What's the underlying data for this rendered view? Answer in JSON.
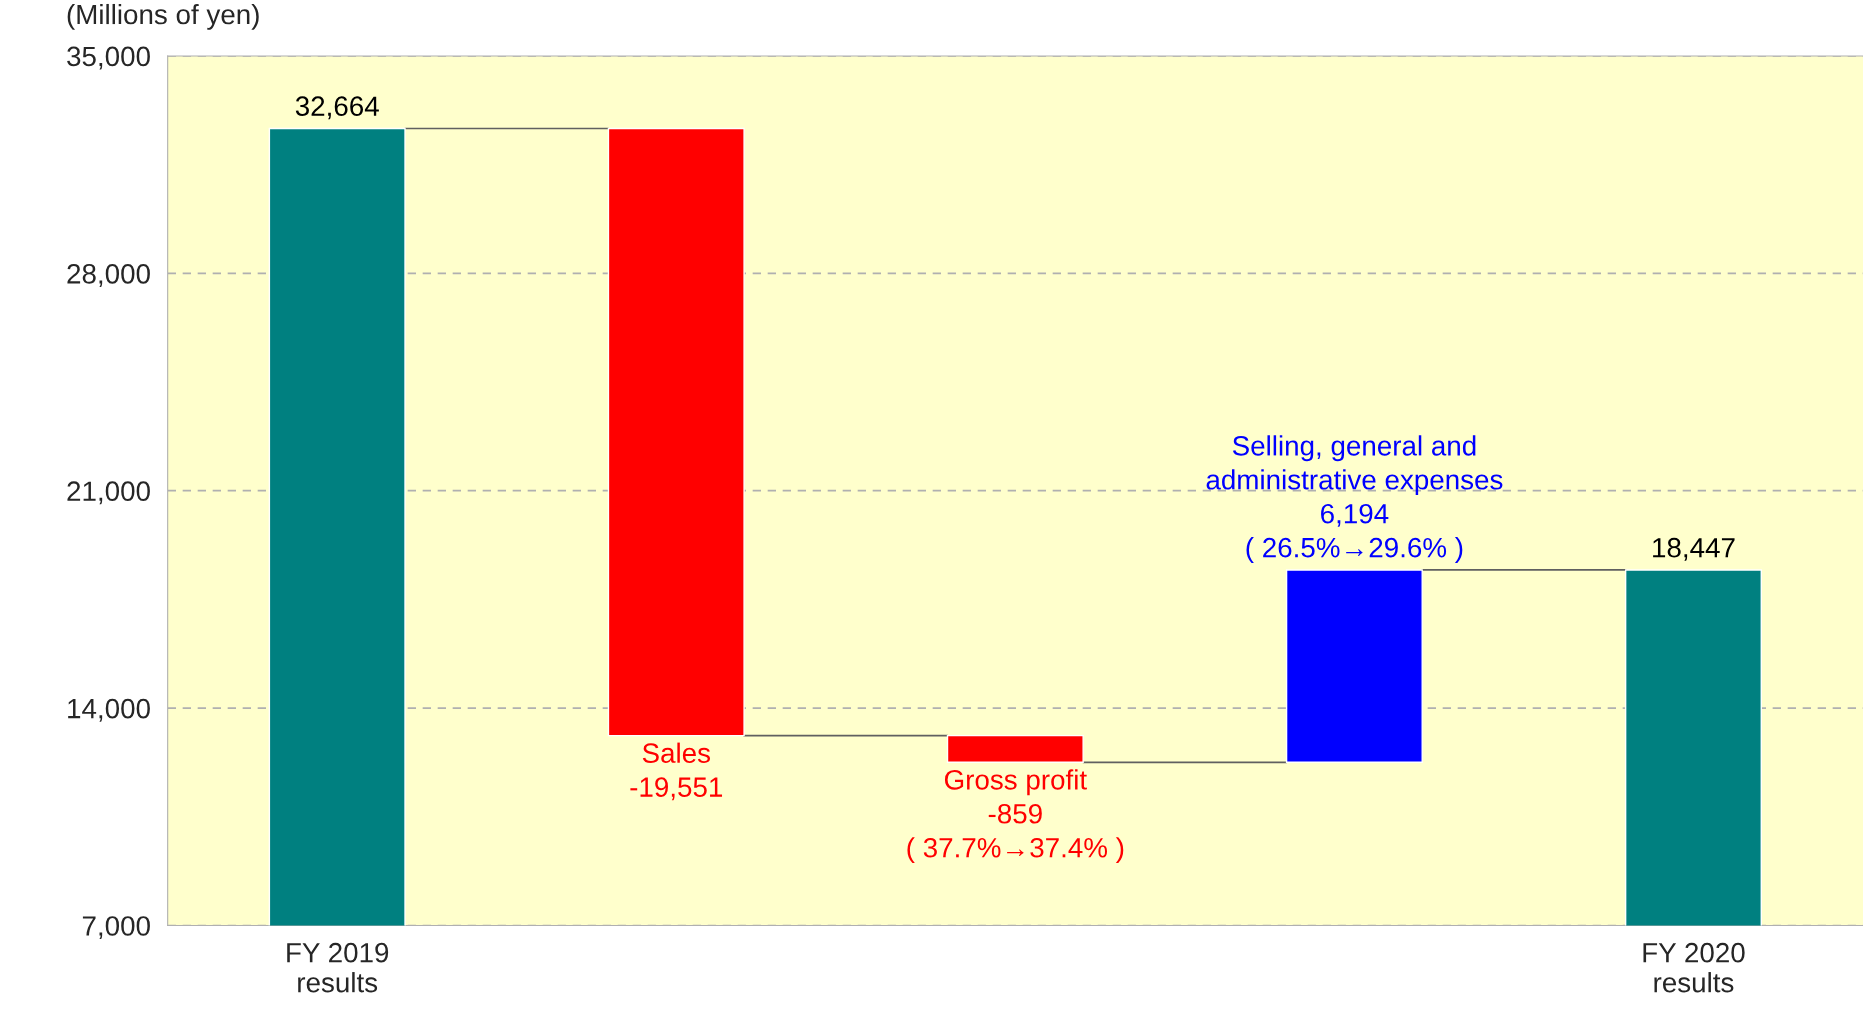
{
  "chart_data": {
    "type": "bar",
    "ylabel": "(Millions of yen)",
    "categories": [
      "FY 2019\nresults",
      null,
      null,
      null,
      "FY 2020\nresults"
    ],
    "values": [
      32664,
      -19551,
      -859,
      6194,
      18447
    ],
    "base": [
      0,
      32664,
      13113,
      12254,
      0
    ],
    "colors": [
      "#008080",
      "#ff0000",
      "#ff0000",
      "#0000ff",
      "#008080"
    ],
    "value_labels": [
      "32,664",
      "Sales\n-19,551",
      "Gross profit\n-859\n( 37.7%→37.4% )",
      "Selling, general and\nadministrative expenses\n6,194\n( 26.5%→29.6% )",
      "18,447"
    ],
    "ylim": [
      7000,
      35000
    ],
    "yticks": [
      {
        "value": 7000,
        "label": "7,000"
      },
      {
        "value": 14000,
        "label": "14,000"
      },
      {
        "value": 21000,
        "label": "21,000"
      },
      {
        "value": 28000,
        "label": "28,000"
      },
      {
        "value": 35000,
        "label": "35,000"
      }
    ],
    "grid": "y"
  }
}
